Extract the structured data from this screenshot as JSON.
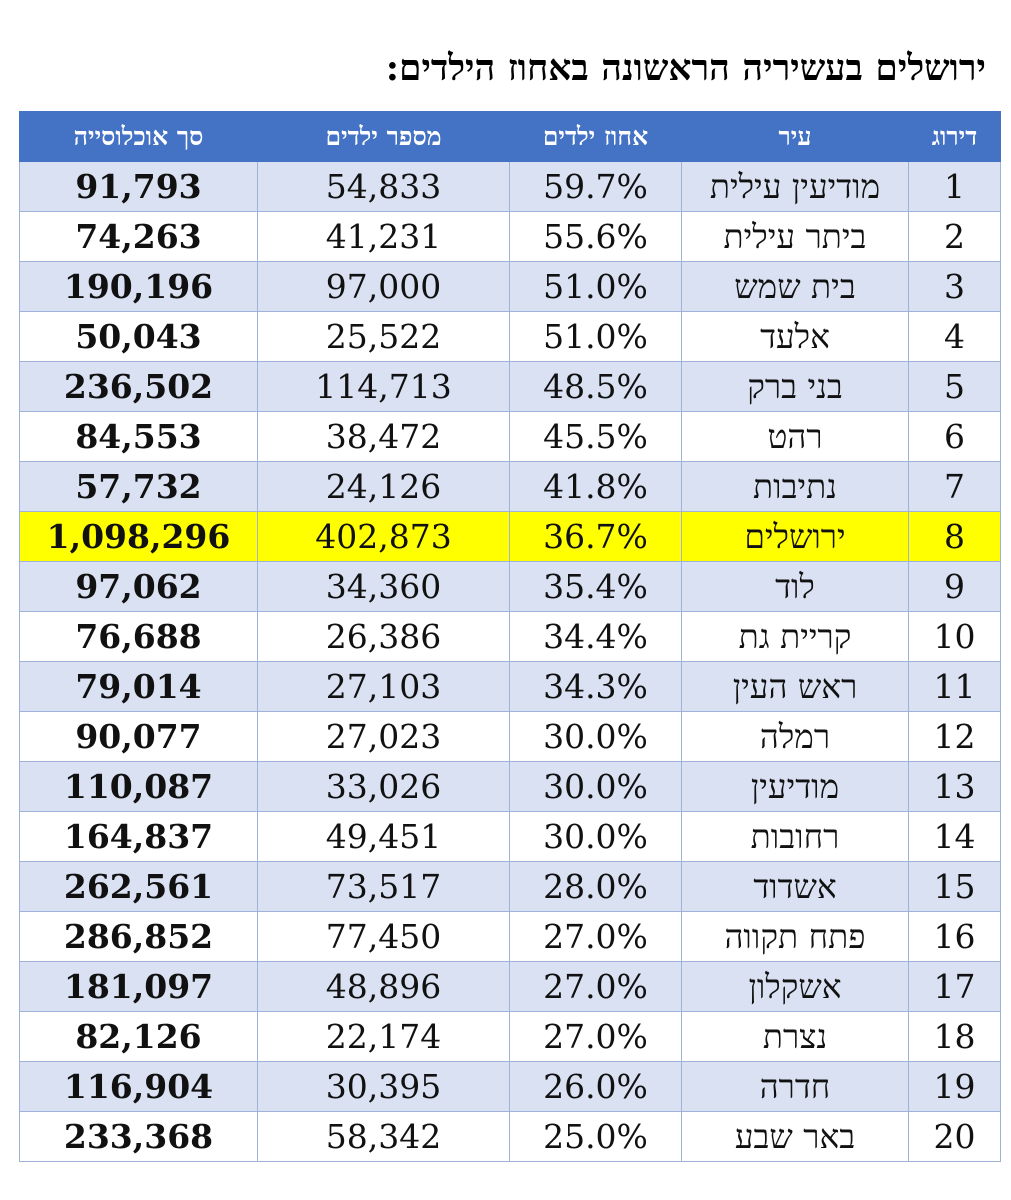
{
  "title": "ירושלים בעשיריה הראשונה באחוז הילדים:",
  "headers": {
    "rank": "דירוג",
    "city": "עיר",
    "pct": "אחוז ילדים",
    "kids": "מספר ילדים",
    "pop": "סך אוכלוסייה"
  },
  "colors": {
    "header": "#4472C4",
    "band": "#D9E1F2",
    "highlight": "#FFFF00"
  },
  "rows": [
    {
      "rank": "1",
      "city": "מודיעין עילית",
      "pct": "59.7%",
      "kids": "54,833",
      "pop": "91,793"
    },
    {
      "rank": "2",
      "city": "ביתר עילית",
      "pct": "55.6%",
      "kids": "41,231",
      "pop": "74,263"
    },
    {
      "rank": "3",
      "city": "בית שמש",
      "pct": "51.0%",
      "kids": "97,000",
      "pop": "190,196"
    },
    {
      "rank": "4",
      "city": "אלעד",
      "pct": "51.0%",
      "kids": "25,522",
      "pop": "50,043"
    },
    {
      "rank": "5",
      "city": "בני ברק",
      "pct": "48.5%",
      "kids": "114,713",
      "pop": "236,502"
    },
    {
      "rank": "6",
      "city": "רהט",
      "pct": "45.5%",
      "kids": "38,472",
      "pop": "84,553"
    },
    {
      "rank": "7",
      "city": "נתיבות",
      "pct": "41.8%",
      "kids": "24,126",
      "pop": "57,732"
    },
    {
      "rank": "8",
      "city": "ירושלים",
      "pct": "36.7%",
      "kids": "402,873",
      "pop": "1,098,296"
    },
    {
      "rank": "9",
      "city": "לוד",
      "pct": "35.4%",
      "kids": "34,360",
      "pop": "97,062"
    },
    {
      "rank": "10",
      "city": "קריית גת",
      "pct": "34.4%",
      "kids": "26,386",
      "pop": "76,688"
    },
    {
      "rank": "11",
      "city": "ראש העין",
      "pct": "34.3%",
      "kids": "27,103",
      "pop": "79,014"
    },
    {
      "rank": "12",
      "city": "רמלה",
      "pct": "30.0%",
      "kids": "27,023",
      "pop": "90,077"
    },
    {
      "rank": "13",
      "city": "מודיעין",
      "pct": "30.0%",
      "kids": "33,026",
      "pop": "110,087"
    },
    {
      "rank": "14",
      "city": "רחובות",
      "pct": "30.0%",
      "kids": "49,451",
      "pop": "164,837"
    },
    {
      "rank": "15",
      "city": "אשדוד",
      "pct": "28.0%",
      "kids": "73,517",
      "pop": "262,561"
    },
    {
      "rank": "16",
      "city": "פתח תקווה",
      "pct": "27.0%",
      "kids": "77,450",
      "pop": "286,852"
    },
    {
      "rank": "17",
      "city": "אשקלון",
      "pct": "27.0%",
      "kids": "48,896",
      "pop": "181,097"
    },
    {
      "rank": "18",
      "city": "נצרת",
      "pct": "27.0%",
      "kids": "22,174",
      "pop": "82,126"
    },
    {
      "rank": "19",
      "city": "חדרה",
      "pct": "26.0%",
      "kids": "30,395",
      "pop": "116,904"
    },
    {
      "rank": "20",
      "city": "באר שבע",
      "pct": "25.0%",
      "kids": "58,342",
      "pop": "233,368"
    }
  ]
}
